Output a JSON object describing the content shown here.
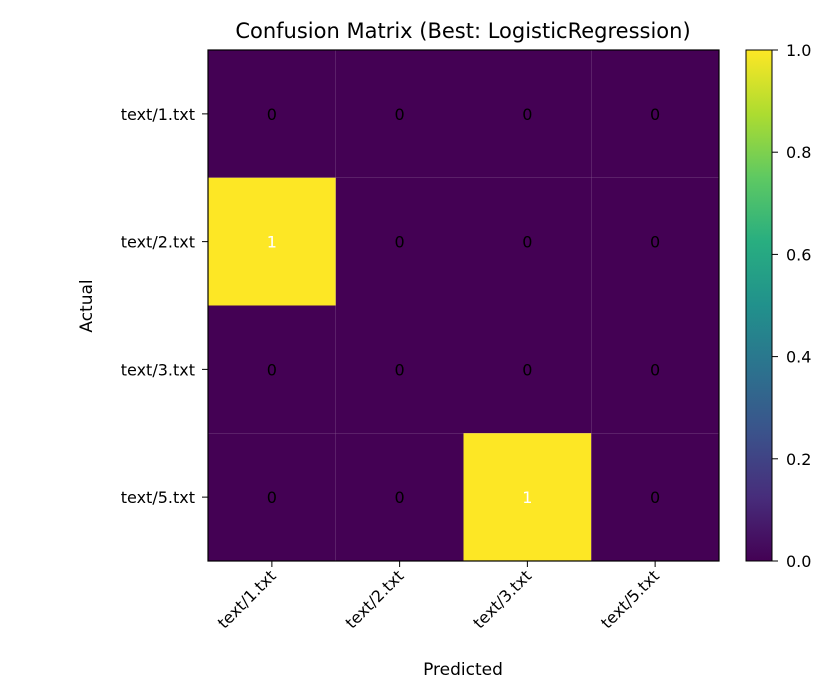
{
  "chart_data": {
    "type": "heatmap",
    "title": "Confusion Matrix (Best: LogisticRegression)",
    "xlabel": "Predicted",
    "ylabel": "Actual",
    "x_categories": [
      "text/1.txt",
      "text/2.txt",
      "text/3.txt",
      "text/5.txt"
    ],
    "y_categories": [
      "text/1.txt",
      "text/2.txt",
      "text/3.txt",
      "text/5.txt"
    ],
    "values": [
      [
        0,
        0,
        0,
        0
      ],
      [
        1,
        0,
        0,
        0
      ],
      [
        0,
        0,
        0,
        0
      ],
      [
        0,
        0,
        1,
        0
      ]
    ],
    "colormap": "viridis",
    "colorbar": {
      "range": [
        0,
        1
      ],
      "ticks": [
        "0.0",
        "0.2",
        "0.4",
        "0.6",
        "0.8",
        "1.0"
      ],
      "low_color": "#440154",
      "high_color": "#fde725"
    },
    "text_colors": {
      "low": "#000000",
      "high": "#ffffff"
    }
  }
}
